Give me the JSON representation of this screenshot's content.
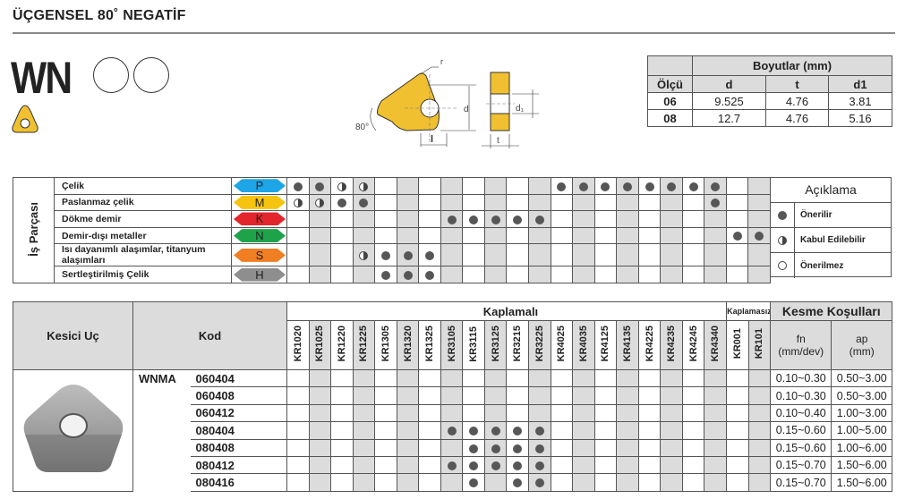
{
  "header": {
    "title": "ÜÇGENSEL 80˚ NEGATİF",
    "series": "WN"
  },
  "drawing": {
    "labels": {
      "r": "r",
      "d": "d",
      "l": "l",
      "d1": "d₁",
      "t": "t",
      "angle": "80°"
    },
    "insert_color": "#f0c030"
  },
  "dimensions": {
    "group_header": "Boyutlar (mm)",
    "columns": [
      "Ölçü",
      "d",
      "t",
      "d1"
    ],
    "rows": [
      {
        "size": "06",
        "d": "9.525",
        "t": "4.76",
        "d1": "3.81"
      },
      {
        "size": "08",
        "d": "12.7",
        "t": "4.76",
        "d1": "5.16"
      }
    ]
  },
  "grades": [
    "KR1020",
    "KR1025",
    "KR1220",
    "KR1225",
    "KR1305",
    "KR1320",
    "KR1325",
    "KR3105",
    "KR3115",
    "KR3125",
    "KR3215",
    "KR3225",
    "KR4025",
    "KR4035",
    "KR4125",
    "KR4135",
    "KR4225",
    "KR4235",
    "KR4245",
    "KR4340",
    "KR001",
    "KR101"
  ],
  "materials": {
    "side_label": "İş Parçası",
    "rows": [
      {
        "name": "Çelik",
        "iso": "P",
        "color": "#1da5e6",
        "recommended": [
          "KR1020",
          "KR1025",
          "KR4025",
          "KR4035",
          "KR4125",
          "KR4135",
          "KR4225",
          "KR4235",
          "KR4245",
          "KR4340"
        ],
        "acceptable": [
          "KR1220",
          "KR1225"
        ]
      },
      {
        "name": "Paslanmaz çelik",
        "iso": "M",
        "color": "#f6c40f",
        "recommended": [
          "KR1220",
          "KR1225",
          "KR4340"
        ],
        "acceptable": [
          "KR1020",
          "KR1025"
        ]
      },
      {
        "name": "Dökme demir",
        "iso": "K",
        "color": "#e2262b",
        "recommended": [
          "KR3105",
          "KR3115",
          "KR3125",
          "KR3215",
          "KR3225"
        ],
        "acceptable": []
      },
      {
        "name": "Demir-dışı metaller",
        "iso": "N",
        "color": "#1fa34a",
        "recommended": [
          "KR001",
          "KR101"
        ],
        "acceptable": []
      },
      {
        "name": "Isı dayanımlı alaşımlar, titanyum alaşımları",
        "iso": "S",
        "color": "#f07e22",
        "recommended": [
          "KR1305",
          "KR1320",
          "KR1325"
        ],
        "acceptable": [
          "KR1225"
        ]
      },
      {
        "name": "Sertleştirilmiş Çelik",
        "iso": "H",
        "color": "#8e8e8e",
        "recommended": [
          "KR1305",
          "KR1320",
          "KR1325"
        ],
        "acceptable": []
      }
    ]
  },
  "legend": {
    "title": "Açıklama",
    "items": [
      {
        "symbol": "recommended",
        "label": "Önerilir"
      },
      {
        "symbol": "acceptable",
        "label": "Kabul Edilebilir"
      },
      {
        "symbol": "not-recommended",
        "label": "Önerilmez"
      }
    ]
  },
  "products": {
    "headers": {
      "insert": "Kesici Uç",
      "code": "Kod",
      "coated": "Kaplamalı",
      "uncoated": "Kaplamasız",
      "conditions": "Kesme Koşulları",
      "fn": "fn\n(mm/dev)",
      "ap": "ap\n(mm)"
    },
    "family": "WNMA",
    "coated_count": 20,
    "rows": [
      {
        "code": "060404",
        "recommended": [],
        "fn": "0.10~0.30",
        "ap": "0.50~3.00"
      },
      {
        "code": "060408",
        "recommended": [],
        "fn": "0.10~0.30",
        "ap": "0.50~3.00"
      },
      {
        "code": "060412",
        "recommended": [],
        "fn": "0.10~0.40",
        "ap": "1.00~3.00"
      },
      {
        "code": "080404",
        "recommended": [
          "KR3105",
          "KR3115",
          "KR3125",
          "KR3215",
          "KR3225"
        ],
        "fn": "0.15~0.60",
        "ap": "1.00~5.00"
      },
      {
        "code": "080408",
        "recommended": [
          "KR3115",
          "KR3125",
          "KR3215",
          "KR3225"
        ],
        "fn": "0.15~0.60",
        "ap": "1.00~6.00"
      },
      {
        "code": "080412",
        "recommended": [
          "KR3105",
          "KR3115",
          "KR3125",
          "KR3215",
          "KR3225"
        ],
        "fn": "0.15~0.70",
        "ap": "1.50~6.00"
      },
      {
        "code": "080416",
        "recommended": [
          "KR3115",
          "KR3215",
          "KR3225"
        ],
        "fn": "0.15~0.70",
        "ap": "1.50~6.00"
      }
    ]
  }
}
